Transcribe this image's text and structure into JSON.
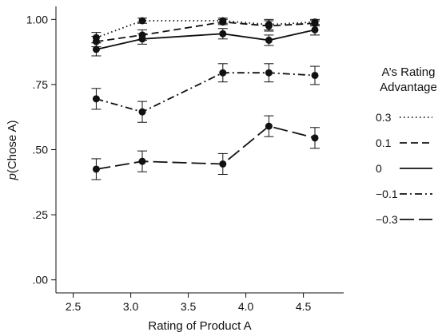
{
  "chart_data": {
    "type": "line",
    "title": "",
    "xlabel": "Rating of Product A",
    "ylabel_italic": "p",
    "ylabel_rest": "(Chose A)",
    "xlim": [
      2.35,
      4.85
    ],
    "ylim": [
      -0.05,
      1.05
    ],
    "xticks": [
      2.5,
      3.0,
      3.5,
      4.0,
      4.5
    ],
    "xtick_labels": [
      "2.5",
      "3.0",
      "3.5",
      "4.0",
      "4.5"
    ],
    "yticks": [
      0.0,
      0.25,
      0.5,
      0.75,
      1.0
    ],
    "ytick_labels": [
      ".00",
      ".25",
      ".50",
      ".75",
      "1.00"
    ],
    "legend_title_line1": "A’s Rating",
    "legend_title_line2": "Advantage",
    "legend_placement": "right",
    "x": [
      2.7,
      3.1,
      3.8,
      4.2,
      4.6
    ],
    "series": [
      {
        "name": "0.3",
        "dash": "1.5,3.5",
        "values": [
          0.93,
          0.995,
          0.995,
          0.98,
          0.99
        ],
        "errors": [
          0.02,
          0.01,
          0.01,
          0.02,
          0.01
        ]
      },
      {
        "name": "0.1",
        "dash": "9,5",
        "values": [
          0.915,
          0.94,
          0.99,
          0.975,
          0.985
        ],
        "errors": [
          0.02,
          0.02,
          0.01,
          0.02,
          0.01
        ]
      },
      {
        "name": "0",
        "dash": "",
        "values": [
          0.885,
          0.925,
          0.945,
          0.92,
          0.96
        ],
        "errors": [
          0.025,
          0.02,
          0.02,
          0.02,
          0.02
        ]
      },
      {
        "name": "−0.1",
        "dash": "9,4,2,4",
        "values": [
          0.695,
          0.645,
          0.795,
          0.795,
          0.785
        ],
        "errors": [
          0.04,
          0.04,
          0.035,
          0.035,
          0.035
        ]
      },
      {
        "name": "−0.3",
        "dash": "18,6",
        "values": [
          0.425,
          0.455,
          0.445,
          0.59,
          0.545
        ],
        "errors": [
          0.04,
          0.04,
          0.04,
          0.04,
          0.04
        ]
      }
    ]
  }
}
